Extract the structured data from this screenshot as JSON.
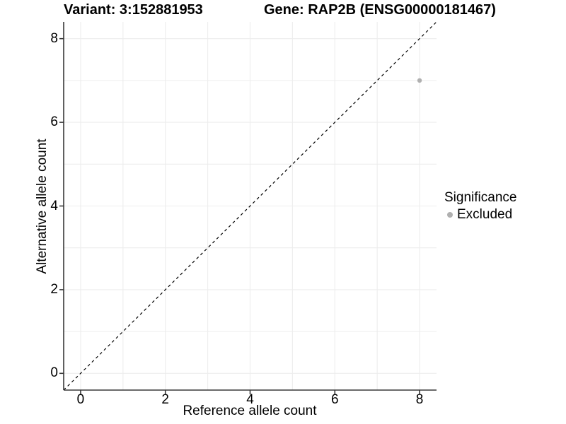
{
  "chart_data": {
    "type": "scatter",
    "title_left": "Variant: 3:152881953",
    "title_right": "Gene: RAP2B (ENSG00000181467)",
    "xlabel": "Reference allele count",
    "ylabel": "Alternative allele count",
    "xlim": [
      -0.4,
      8.4
    ],
    "ylim": [
      -0.4,
      8.4
    ],
    "xticks": [
      0,
      2,
      4,
      6,
      8
    ],
    "yticks": [
      0,
      2,
      4,
      6,
      8
    ],
    "grid_values": [
      0,
      1,
      2,
      3,
      4,
      5,
      6,
      7,
      8
    ],
    "grid_on": true,
    "grid_color": "#ededed",
    "axis_color": "#383838",
    "reference_line": {
      "type": "identity y=x",
      "x1": -0.4,
      "y1": -0.4,
      "x2": 8.4,
      "y2": 8.4,
      "style": "dashed",
      "color": "#000000"
    },
    "series": [
      {
        "name": "Excluded",
        "color": "#b0b0b0",
        "points": [
          {
            "x": 8,
            "y": 7
          }
        ]
      }
    ],
    "legend": {
      "title": "Significance",
      "position": "right",
      "items": [
        {
          "label": "Excluded",
          "color": "#b0b0b0"
        }
      ]
    }
  }
}
